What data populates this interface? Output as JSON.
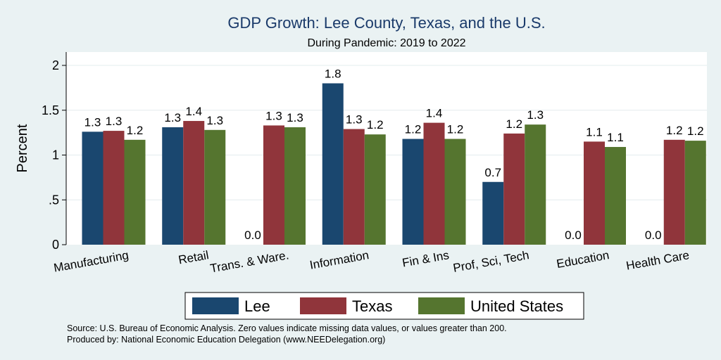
{
  "chart_data": {
    "type": "bar",
    "title": "GDP Growth: Lee County, Texas, and the U.S.",
    "subtitle": "During Pandemic: 2019 to 2022",
    "ylabel": "Percent",
    "ylim": [
      0,
      2.1
    ],
    "yticks": [
      0,
      0.5,
      1,
      1.5,
      2
    ],
    "ytick_labels": [
      "0",
      ".5",
      "1",
      "1.5",
      "2"
    ],
    "grid": true,
    "legend_position": "bottom",
    "categories": [
      "Manufacturing",
      "Retail",
      "Trans. & Ware.",
      "Information",
      "Fin & Ins",
      "Prof, Sci, Tech",
      "Education",
      "Health Care"
    ],
    "series": [
      {
        "name": "Lee",
        "color": "#1a476f",
        "values": [
          1.26,
          1.31,
          0,
          1.8,
          1.18,
          0.7,
          0,
          0
        ],
        "labels": [
          "1.3",
          "1.3",
          "0.0",
          "1.8",
          "1.2",
          "0.7",
          "0.0",
          "0.0"
        ]
      },
      {
        "name": "Texas",
        "color": "#90353b",
        "values": [
          1.27,
          1.38,
          1.33,
          1.29,
          1.36,
          1.24,
          1.15,
          1.17
        ],
        "labels": [
          "1.3",
          "1.4",
          "1.3",
          "1.3",
          "1.4",
          "1.2",
          "1.1",
          "1.2"
        ]
      },
      {
        "name": "United States",
        "color": "#55752f",
        "values": [
          1.17,
          1.28,
          1.31,
          1.23,
          1.18,
          1.34,
          1.09,
          1.16
        ],
        "labels": [
          "1.2",
          "1.3",
          "1.3",
          "1.2",
          "1.2",
          "1.3",
          "1.1",
          "1.2"
        ]
      }
    ],
    "notes": [
      "Source: U.S. Bureau of Economic Analysis. Zero values indicate missing data values, or values greater than 200.",
      "Produced by: National Economic Education Delegation (www.NEEDelegation.org)"
    ]
  }
}
